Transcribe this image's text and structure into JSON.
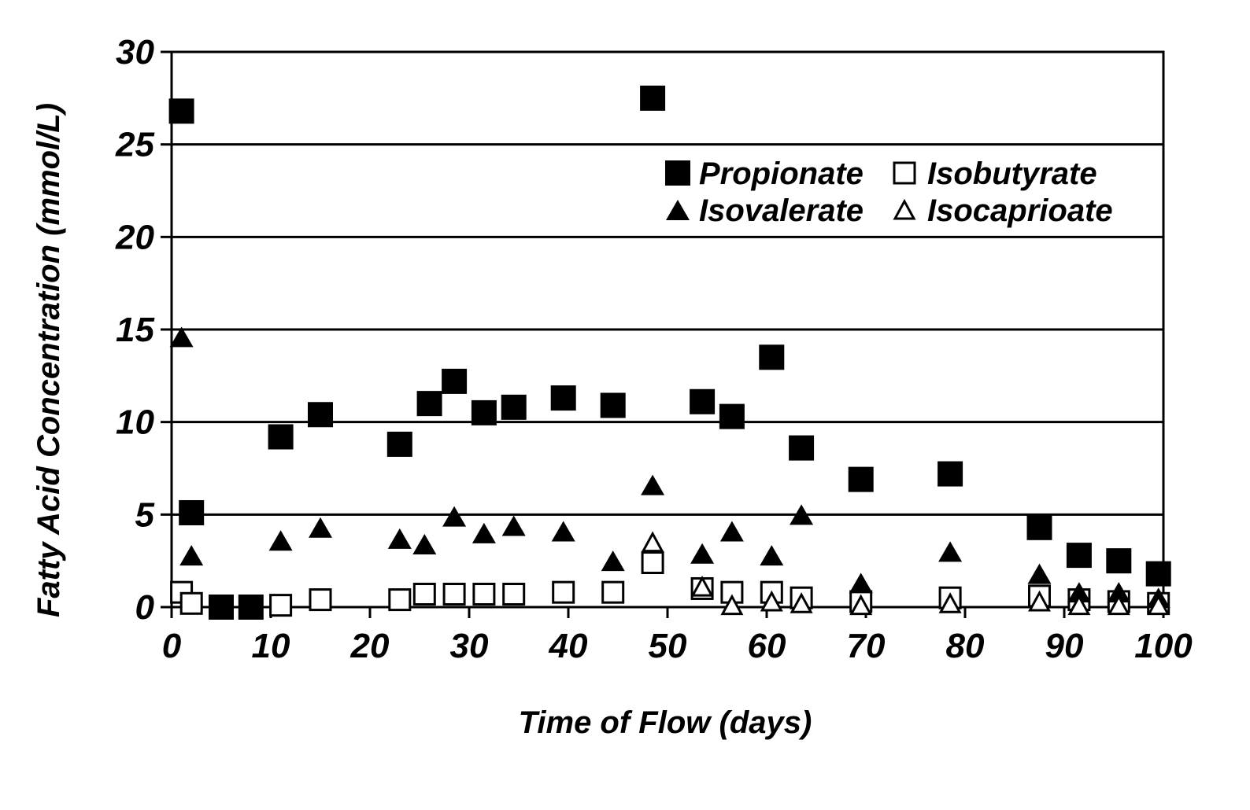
{
  "chart_data": {
    "type": "scatter",
    "title": "",
    "xlabel": "Time of Flow (days)",
    "ylabel": "Fatty Acid Concentration (mmol/L)",
    "xlim": [
      0,
      100
    ],
    "ylim": [
      0,
      30
    ],
    "xticks": [
      0,
      10,
      20,
      30,
      40,
      50,
      60,
      70,
      80,
      90,
      100
    ],
    "yticks": [
      0,
      5,
      10,
      15,
      20,
      25,
      30
    ],
    "grid": "horizontal",
    "legend_position": "top-right",
    "series": [
      {
        "name": "Propionate",
        "marker": "filled-square",
        "color": "#000000",
        "points": [
          [
            1,
            26.8
          ],
          [
            2,
            5.1
          ],
          [
            5,
            0
          ],
          [
            8,
            0
          ],
          [
            11,
            9.2
          ],
          [
            15,
            10.4
          ],
          [
            23,
            8.8
          ],
          [
            26,
            11
          ],
          [
            28.5,
            12.2
          ],
          [
            31.5,
            10.5
          ],
          [
            34.5,
            10.8
          ],
          [
            39.5,
            11.3
          ],
          [
            44.5,
            10.9
          ],
          [
            48.5,
            27.5
          ],
          [
            53.5,
            11.1
          ],
          [
            56.5,
            10.3
          ],
          [
            60.5,
            13.5
          ],
          [
            63.5,
            8.6
          ],
          [
            69.5,
            6.9
          ],
          [
            78.5,
            7.2
          ],
          [
            87.5,
            4.3
          ],
          [
            91.5,
            2.8
          ],
          [
            95.5,
            2.5
          ],
          [
            99.5,
            1.8
          ]
        ]
      },
      {
        "name": "Isobutyrate",
        "marker": "open-square",
        "color": "#000000",
        "points": [
          [
            1,
            0.8
          ],
          [
            2,
            0.2
          ],
          [
            11,
            0.1
          ],
          [
            15,
            0.4
          ],
          [
            23,
            0.4
          ],
          [
            25.5,
            0.7
          ],
          [
            28.5,
            0.7
          ],
          [
            31.5,
            0.7
          ],
          [
            34.5,
            0.7
          ],
          [
            39.5,
            0.8
          ],
          [
            44.5,
            0.8
          ],
          [
            48.5,
            2.4
          ],
          [
            53.5,
            1
          ],
          [
            56.5,
            0.8
          ],
          [
            60.5,
            0.8
          ],
          [
            63.5,
            0.5
          ],
          [
            69.5,
            0.3
          ],
          [
            78.5,
            0.5
          ],
          [
            87.5,
            0.6
          ],
          [
            91.5,
            0.4
          ],
          [
            95.5,
            0.3
          ],
          [
            99.5,
            0.2
          ]
        ]
      },
      {
        "name": "Isovalerate",
        "marker": "filled-triangle",
        "color": "#000000",
        "points": [
          [
            1,
            14.6
          ],
          [
            2,
            2.8
          ],
          [
            11,
            3.6
          ],
          [
            15,
            4.3
          ],
          [
            23,
            3.7
          ],
          [
            25.5,
            3.4
          ],
          [
            28.5,
            4.9
          ],
          [
            31.5,
            4
          ],
          [
            34.5,
            4.4
          ],
          [
            39.5,
            4.1
          ],
          [
            44.5,
            2.5
          ],
          [
            48.5,
            6.6
          ],
          [
            53.5,
            2.9
          ],
          [
            56.5,
            4.1
          ],
          [
            60.5,
            2.8
          ],
          [
            63.5,
            5
          ],
          [
            69.5,
            1.3
          ],
          [
            78.5,
            3
          ],
          [
            87.5,
            1.8
          ],
          [
            91.5,
            0.8
          ],
          [
            95.5,
            0.8
          ],
          [
            99.5,
            0.5
          ]
        ]
      },
      {
        "name": "Isocaprioate",
        "marker": "open-triangle",
        "color": "#000000",
        "points": [
          [
            48.5,
            3.5
          ],
          [
            53.5,
            1.1
          ],
          [
            56.5,
            0.1
          ],
          [
            60.5,
            0.3
          ],
          [
            63.5,
            0.2
          ],
          [
            69.5,
            0.1
          ],
          [
            78.5,
            0.2
          ],
          [
            87.5,
            0.3
          ],
          [
            91.5,
            0.1
          ],
          [
            95.5,
            0.1
          ],
          [
            99.5,
            0.1
          ]
        ]
      }
    ]
  }
}
